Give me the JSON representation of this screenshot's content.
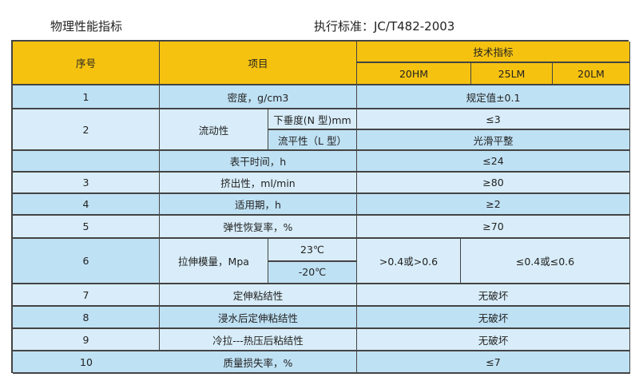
{
  "title_left": "物理性能指标",
  "title_right": "执行标准：JC/T482-2003",
  "header": {
    "seq": "序号",
    "item": "项目",
    "spec": "技术指标",
    "types": [
      "20HM",
      "25LM",
      "20LM"
    ]
  },
  "rows": [
    {
      "seq": "1",
      "item": "密度，g/cm3",
      "value": "规定值±0.1"
    },
    {
      "seq": "2",
      "item": "流动性",
      "sub": [
        {
          "item": "下垂度(N 型)mm",
          "value": "≤3"
        },
        {
          "item": "流平性（L 型）",
          "value": "光滑平整"
        }
      ]
    },
    {
      "seq": "",
      "item": "表干时间，h",
      "value": "≤24"
    },
    {
      "seq": "3",
      "item": "挤出性，ml/min",
      "value": "≥80"
    },
    {
      "seq": "4",
      "item": "适用期，h",
      "value": "≥2"
    },
    {
      "seq": "5",
      "item": "弹性恢复率，%",
      "value": "≥70"
    },
    {
      "seq": "6",
      "item": "拉伸模量，Mpa",
      "sub": [
        {
          "item": "23℃"
        },
        {
          "item": "-20℃"
        }
      ],
      "values": [
        ">0.4或>0.6",
        "≤0.4或≤0.6"
      ]
    },
    {
      "seq": "7",
      "item": "定伸粘结性",
      "value": "无破坏"
    },
    {
      "seq": "8",
      "item": "浸水后定伸粘结性",
      "value": "无破坏"
    },
    {
      "seq": "9",
      "item": "冷拉---热压后粘结性",
      "value": "无破坏"
    },
    {
      "seq": "10",
      "item": "质量损失率，%",
      "value": "≤7"
    }
  ]
}
